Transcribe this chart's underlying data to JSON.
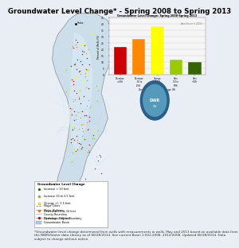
{
  "title": "Groundwater Level Change* - Spring 2008 to Spring 2013",
  "title_fontsize": 6.2,
  "title_fontweight": "bold",
  "background_color": "#e8eef4",
  "map_bg": "#ccdff0",
  "bar_chart": {
    "title": "Groundwater Level Change: Spring 2008-Spring 2013",
    "subtitle": "Areas Shown in 2000+",
    "ylabel": "Percent of Wells (%)",
    "xlabel": "Groundwater Level Change (ft)",
    "categories": [
      "Decrease\n>-25ft",
      "Decrease\n-10 to\n-25ft",
      "Change\n(+/-9.9\nft)",
      "Gain\n0.0 to\n9.9ft",
      "Gain\n+10ft"
    ],
    "values": [
      22,
      28,
      38,
      12,
      10
    ],
    "colors": [
      "#cc0000",
      "#ff8800",
      "#ffff00",
      "#99cc00",
      "#336600"
    ],
    "ylim": [
      0,
      45
    ],
    "yticks": [
      0,
      5,
      10,
      15,
      20,
      25,
      30,
      35,
      40,
      45
    ],
    "bg_color": "#f5f5f5",
    "border_color": "#888888"
  },
  "legend": {
    "title": "Groundwater Level Change",
    "items_colors": [
      "#336600",
      "#99cc00",
      "#ffff00",
      "#ff8800",
      "#cc0000"
    ],
    "items_labels": [
      "Increase > 10 feet",
      "Increase 10 to 2.5 feet",
      "Change +/- 2.5 feet",
      "Decrease 0.0 to 10 feet",
      "Decrease > 10 feet"
    ],
    "area_labels": [
      "Groundwater Basin",
      "Hydrologic Region Boundary",
      "County Boundary",
      "Major Highway",
      "Major Cities"
    ],
    "area_colors": [
      "#aaccee",
      "#aaaaaa",
      "#cccccc",
      "#888888",
      "#777777"
    ]
  },
  "footnote": "*Groundwater level change determined from wells with measurements in wells. May and 2013 based on available data from the NWIS/Stater data Library as of 06/28/2014. See current Basin 1:922,2008, 2012/2008, Updated 06/28/2014. Data subject to change without notice.",
  "footnote_fontsize": 3.0
}
